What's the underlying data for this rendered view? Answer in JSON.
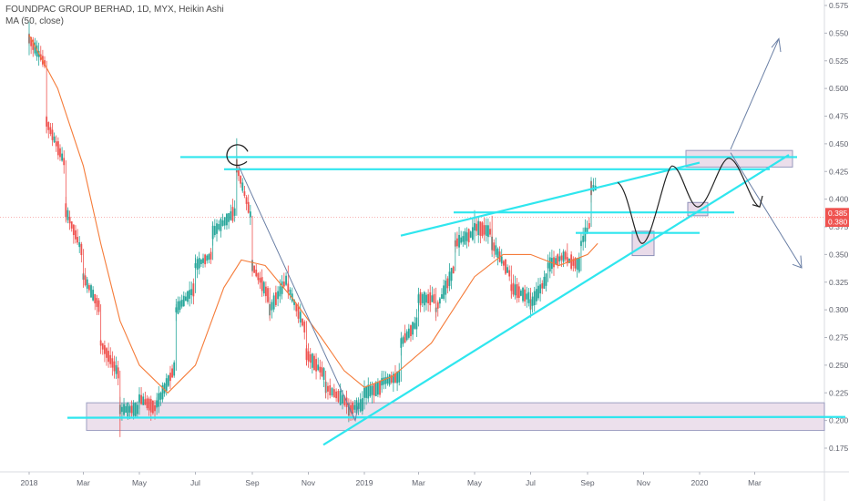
{
  "header": {
    "title": "FOUNDPAC GROUP BERHAD, 1D, MYX, Heikin Ashi",
    "indicator": "MA (50, close)"
  },
  "colors": {
    "bull": "#26a69a",
    "bear": "#ef5350",
    "ma": "#f57c3a",
    "cyan_lines": "#2fe6ee",
    "arrow": "#6a7fa5",
    "zone_fill": "#e9dbe9",
    "zone_stroke": "#8c8fb8",
    "badge_red": "#ef5350",
    "current_price_line": "#ef5350"
  },
  "chart_data": {
    "type": "candlestick",
    "title": "FOUNDPAC GROUP BERHAD, 1D, MYX, Heikin Ashi",
    "ylim": [
      0.165,
      0.578
    ],
    "y_ticks": [
      "0.575",
      "0.550",
      "0.525",
      "0.500",
      "0.475",
      "0.450",
      "0.425",
      "0.400",
      "0.375",
      "0.350",
      "0.325",
      "0.300",
      "0.275",
      "0.250",
      "0.225",
      "0.200",
      "0.175"
    ],
    "x_ticks": [
      "2018",
      "Mar",
      "May",
      "Jul",
      "Sep",
      "Nov",
      "2019",
      "Mar",
      "May",
      "Jul",
      "Sep",
      "Nov",
      "2020",
      "Mar"
    ],
    "price_badges": [
      "0.385",
      "0.380"
    ],
    "series": [
      {
        "name": "MA (50, close)",
        "x": [
          "2018-01-01",
          "2018-02-01",
          "2018-03-01",
          "2018-03-20",
          "2018-04-10",
          "2018-05-01",
          "2018-06-01",
          "2018-07-01",
          "2018-08-01",
          "2018-08-20",
          "2018-09-15",
          "2018-10-15",
          "2018-11-15",
          "2018-12-10",
          "2019-01-01",
          "2019-02-01",
          "2019-03-15",
          "2019-05-01",
          "2019-06-01",
          "2019-07-01",
          "2019-08-01",
          "2019-09-01",
          "2019-09-12"
        ],
        "values": [
          0.548,
          0.5,
          0.43,
          0.36,
          0.29,
          0.25,
          0.225,
          0.25,
          0.32,
          0.345,
          0.34,
          0.31,
          0.275,
          0.245,
          0.23,
          0.24,
          0.27,
          0.33,
          0.35,
          0.35,
          0.34,
          0.35,
          0.36
        ]
      }
    ],
    "candles": [
      {
        "x": "2018-01-01",
        "o": 0.54,
        "c": 0.545,
        "h": 0.56,
        "l": 0.53
      },
      {
        "x": "2018-01-20",
        "o": 0.52,
        "c": 0.47,
        "h": 0.525,
        "l": 0.46
      },
      {
        "x": "2018-02-10",
        "o": 0.43,
        "c": 0.39,
        "h": 0.435,
        "l": 0.38
      },
      {
        "x": "2018-03-01",
        "o": 0.35,
        "c": 0.33,
        "h": 0.355,
        "l": 0.32
      },
      {
        "x": "2018-03-20",
        "o": 0.3,
        "c": 0.27,
        "h": 0.305,
        "l": 0.26
      },
      {
        "x": "2018-04-10",
        "o": 0.24,
        "c": 0.21,
        "h": 0.245,
        "l": 0.185
      },
      {
        "x": "2018-05-01",
        "o": 0.21,
        "c": 0.22,
        "h": 0.23,
        "l": 0.205
      },
      {
        "x": "2018-05-20",
        "o": 0.21,
        "c": 0.215,
        "h": 0.225,
        "l": 0.205
      },
      {
        "x": "2018-06-10",
        "o": 0.25,
        "c": 0.3,
        "h": 0.31,
        "l": 0.245
      },
      {
        "x": "2018-07-01",
        "o": 0.32,
        "c": 0.34,
        "h": 0.35,
        "l": 0.315
      },
      {
        "x": "2018-07-20",
        "o": 0.35,
        "c": 0.37,
        "h": 0.38,
        "l": 0.345
      },
      {
        "x": "2018-08-15",
        "o": 0.39,
        "c": 0.43,
        "h": 0.455,
        "l": 0.385
      },
      {
        "x": "2018-09-01",
        "o": 0.38,
        "c": 0.34,
        "h": 0.385,
        "l": 0.33
      },
      {
        "x": "2018-09-20",
        "o": 0.31,
        "c": 0.3,
        "h": 0.32,
        "l": 0.29
      },
      {
        "x": "2018-10-10",
        "o": 0.33,
        "c": 0.32,
        "h": 0.34,
        "l": 0.31
      },
      {
        "x": "2018-10-30",
        "o": 0.28,
        "c": 0.26,
        "h": 0.29,
        "l": 0.25
      },
      {
        "x": "2018-11-20",
        "o": 0.24,
        "c": 0.23,
        "h": 0.245,
        "l": 0.22
      },
      {
        "x": "2018-12-15",
        "o": 0.215,
        "c": 0.21,
        "h": 0.22,
        "l": 0.2
      },
      {
        "x": "2019-01-01",
        "o": 0.215,
        "c": 0.225,
        "h": 0.23,
        "l": 0.21
      },
      {
        "x": "2019-01-20",
        "o": 0.23,
        "c": 0.235,
        "h": 0.245,
        "l": 0.225
      },
      {
        "x": "2019-02-10",
        "o": 0.24,
        "c": 0.27,
        "h": 0.28,
        "l": 0.235
      },
      {
        "x": "2019-03-01",
        "o": 0.29,
        "c": 0.31,
        "h": 0.32,
        "l": 0.285
      },
      {
        "x": "2019-03-20",
        "o": 0.31,
        "c": 0.3,
        "h": 0.32,
        "l": 0.29
      },
      {
        "x": "2019-04-10",
        "o": 0.34,
        "c": 0.36,
        "h": 0.37,
        "l": 0.335
      },
      {
        "x": "2019-05-01",
        "o": 0.37,
        "c": 0.375,
        "h": 0.39,
        "l": 0.36
      },
      {
        "x": "2019-05-20",
        "o": 0.37,
        "c": 0.36,
        "h": 0.385,
        "l": 0.35
      },
      {
        "x": "2019-06-10",
        "o": 0.33,
        "c": 0.32,
        "h": 0.34,
        "l": 0.31
      },
      {
        "x": "2019-07-01",
        "o": 0.31,
        "c": 0.305,
        "h": 0.32,
        "l": 0.3
      },
      {
        "x": "2019-07-20",
        "o": 0.33,
        "c": 0.34,
        "h": 0.35,
        "l": 0.325
      },
      {
        "x": "2019-08-10",
        "o": 0.35,
        "c": 0.345,
        "h": 0.36,
        "l": 0.34
      },
      {
        "x": "2019-08-25",
        "o": 0.34,
        "c": 0.36,
        "h": 0.37,
        "l": 0.335
      },
      {
        "x": "2019-09-05",
        "o": 0.38,
        "c": 0.41,
        "h": 0.42,
        "l": 0.375
      },
      {
        "x": "2019-09-12",
        "o": 0.41,
        "c": 0.39,
        "h": 0.415,
        "l": 0.38
      }
    ]
  }
}
